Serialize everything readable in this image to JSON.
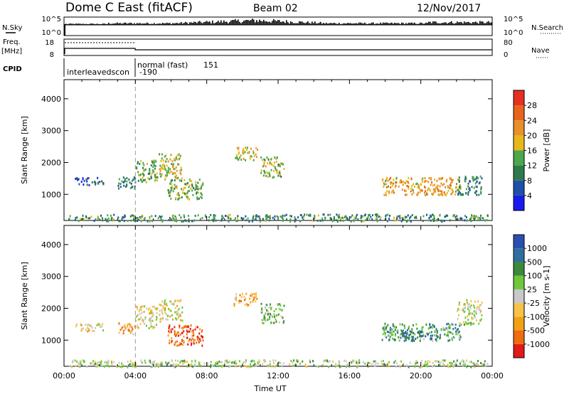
{
  "header": {
    "station": "Dome C East (fitACF)",
    "beam": "Beam 02",
    "date": "12/Nov/2017"
  },
  "panels": {
    "nsky": {
      "label": "N.Sky",
      "ticks": [
        "10^5",
        "10^0"
      ],
      "right_ticks": [
        "10^5",
        "10^0"
      ],
      "right_label": "N.Search"
    },
    "freq": {
      "label": "Freq.",
      "unit": "[MHz]",
      "ticks": [
        "18",
        "8"
      ],
      "right_ticks": [
        "80",
        "0"
      ],
      "right_label": "Nave"
    },
    "cpid": {
      "label": "CPID",
      "mode1": "interleavedscon",
      "mode1_id": "-190",
      "mode2": "normal (fast)",
      "mode2_id": "151"
    }
  },
  "colors": {
    "power": [
      "#1a1aee",
      "#1f4fa8",
      "#2f7a4a",
      "#4ca84a",
      "#e6b81a",
      "#e8902a",
      "#e8641c",
      "#e83020"
    ],
    "velocity": [
      "#e11a1a",
      "#ef6c10",
      "#f2a114",
      "#f6c24a",
      "#c8c8c8",
      "#6ec83a",
      "#3a8a3a",
      "#2f6fa0",
      "#2a4fb0"
    ]
  },
  "chart_data": [
    {
      "type": "heatmap",
      "name": "power",
      "ylabel": "Slant Range [km]",
      "xlabel": "Time UT",
      "ylim": [
        180,
        4600
      ],
      "yticks": [
        1000,
        2000,
        3000,
        4000
      ],
      "xticks": [
        "00:00",
        "04:00",
        "08:00",
        "12:00",
        "16:00",
        "20:00",
        "00:00"
      ],
      "colorbar": {
        "label": "Power [dB]",
        "ticks": [
          "4",
          "8",
          "12",
          "16",
          "20",
          "24",
          "28"
        ]
      },
      "marker_time": "04:00",
      "patches": [
        {
          "t": [
            0.6,
            2.2
          ],
          "r": [
            1300,
            1550
          ],
          "v": 0.2
        },
        {
          "t": [
            3.0,
            4.0
          ],
          "r": [
            1200,
            1600
          ],
          "v": 0.3
        },
        {
          "t": [
            4.0,
            5.2
          ],
          "r": [
            1400,
            2100
          ],
          "v": 0.4
        },
        {
          "t": [
            5.3,
            6.6
          ],
          "r": [
            1500,
            2300
          ],
          "v": 0.55
        },
        {
          "t": [
            5.8,
            7.8
          ],
          "r": [
            850,
            1500
          ],
          "v": 0.45
        },
        {
          "t": [
            9.5,
            10.8
          ],
          "r": [
            2100,
            2500
          ],
          "v": 0.55
        },
        {
          "t": [
            11.0,
            12.3
          ],
          "r": [
            1550,
            2200
          ],
          "v": 0.5
        },
        {
          "t": [
            17.8,
            22.2
          ],
          "r": [
            1000,
            1550
          ],
          "v": 0.65
        },
        {
          "t": [
            22.0,
            23.4
          ],
          "r": [
            1000,
            1600
          ],
          "v": 0.3
        },
        {
          "t": [
            0.2,
            23.8
          ],
          "r": [
            180,
            400
          ],
          "v": 0.35
        }
      ]
    },
    {
      "type": "heatmap",
      "name": "velocity",
      "ylabel": "Slant Range [km]",
      "xlabel": "Time UT",
      "ylim": [
        180,
        4600
      ],
      "yticks": [
        1000,
        2000,
        3000,
        4000
      ],
      "xticks": [
        "00:00",
        "04:00",
        "08:00",
        "12:00",
        "16:00",
        "20:00",
        "00:00"
      ],
      "colorbar": {
        "label": "Velocity [m s-1]",
        "ticks": [
          "1000",
          "500",
          "100",
          "25",
          "-25",
          "-100",
          "-500",
          "-1000"
        ]
      },
      "marker_time": "04:00",
      "patches": [
        {
          "t": [
            0.6,
            2.2
          ],
          "r": [
            1300,
            1550
          ],
          "v": 0.4
        },
        {
          "t": [
            3.0,
            4.0
          ],
          "r": [
            1200,
            1600
          ],
          "v": 0.3
        },
        {
          "t": [
            4.0,
            5.2
          ],
          "r": [
            1400,
            2100
          ],
          "v": 0.45
        },
        {
          "t": [
            5.3,
            6.6
          ],
          "r": [
            1600,
            2300
          ],
          "v": 0.45
        },
        {
          "t": [
            5.8,
            7.8
          ],
          "r": [
            850,
            1500
          ],
          "v": 0.15
        },
        {
          "t": [
            9.5,
            10.8
          ],
          "r": [
            2100,
            2500
          ],
          "v": 0.3
        },
        {
          "t": [
            11.0,
            12.3
          ],
          "r": [
            1550,
            2200
          ],
          "v": 0.6
        },
        {
          "t": [
            17.8,
            22.2
          ],
          "r": [
            1000,
            1550
          ],
          "v": 0.7
        },
        {
          "t": [
            19.0,
            20.6
          ],
          "r": [
            1000,
            1300
          ],
          "v": 0.85
        },
        {
          "t": [
            22.0,
            23.4
          ],
          "r": [
            1500,
            2300
          ],
          "v": 0.5
        },
        {
          "t": [
            0.2,
            23.8
          ],
          "r": [
            180,
            400
          ],
          "v": 0.55
        }
      ]
    }
  ]
}
